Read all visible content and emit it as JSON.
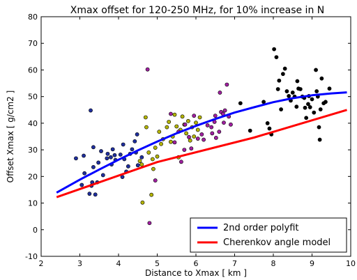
{
  "chart_data": {
    "type": "scatter",
    "title": "Xmax offset for 120-250 MHz, for 10% increase in N",
    "xlabel": "Distance to Xmax [ km ]",
    "ylabel": "Offset Xmax [ g/cm2 ]",
    "xlim": [
      2,
      10
    ],
    "ylim": [
      -10,
      80
    ],
    "xticks": [
      2,
      3,
      4,
      5,
      6,
      7,
      8,
      9,
      10
    ],
    "yticks": [
      -10,
      0,
      10,
      20,
      30,
      40,
      50,
      60,
      70,
      80
    ],
    "grid": false,
    "legend_position": "lower-right",
    "scatter_series": [
      {
        "color": "#1f2f9e",
        "points": [
          [
            2.9,
            26.8
          ],
          [
            3.05,
            16.8
          ],
          [
            3.1,
            27.8
          ],
          [
            3.12,
            21.2
          ],
          [
            3.25,
            13.5
          ],
          [
            3.28,
            44.8
          ],
          [
            3.3,
            16.5
          ],
          [
            3.32,
            17.8
          ],
          [
            3.35,
            23.5
          ],
          [
            3.35,
            31
          ],
          [
            3.4,
            13.2
          ],
          [
            3.45,
            17.8
          ],
          [
            3.48,
            25.2
          ],
          [
            3.55,
            29.5
          ],
          [
            3.6,
            20.5
          ],
          [
            3.7,
            26.8
          ],
          [
            3.72,
            28.5
          ],
          [
            3.8,
            27.2
          ],
          [
            3.82,
            24.5
          ],
          [
            3.85,
            30.2
          ],
          [
            3.9,
            28
          ],
          [
            3.92,
            26.2
          ],
          [
            4.05,
            28.2
          ],
          [
            4.1,
            19.8
          ],
          [
            4.12,
            32
          ],
          [
            4.15,
            26.5
          ],
          [
            4.2,
            21.8
          ],
          [
            4.25,
            23.8
          ],
          [
            4.3,
            28.5
          ],
          [
            4.35,
            30.2
          ],
          [
            4.42,
            33.2
          ],
          [
            4.45,
            29
          ],
          [
            4.48,
            35.8
          ],
          [
            4.5,
            24.2
          ],
          [
            4.6,
            27.2
          ]
        ]
      },
      {
        "color": "#b4b400",
        "points": [
          [
            4.55,
            25.8
          ],
          [
            4.6,
            24.5
          ],
          [
            4.62,
            10.2
          ],
          [
            4.7,
            42.2
          ],
          [
            4.72,
            38.5
          ],
          [
            4.78,
            29
          ],
          [
            4.85,
            13.1
          ],
          [
            4.88,
            26.5
          ],
          [
            4.9,
            22.8
          ],
          [
            4.95,
            30.8
          ],
          [
            5.0,
            27.5
          ],
          [
            5.05,
            36.8
          ],
          [
            5.1,
            32.2
          ],
          [
            5.15,
            34
          ],
          [
            5.25,
            38.5
          ],
          [
            5.3,
            40.5
          ],
          [
            5.35,
            33
          ],
          [
            5.4,
            35
          ],
          [
            5.45,
            43.2
          ],
          [
            5.5,
            38.8
          ],
          [
            5.55,
            27.2
          ],
          [
            5.6,
            37.5
          ],
          [
            5.65,
            42.5
          ],
          [
            5.7,
            39.5
          ],
          [
            5.75,
            36.2
          ],
          [
            5.8,
            40.8
          ],
          [
            5.85,
            33.5
          ],
          [
            5.9,
            38.5
          ],
          [
            5.95,
            35
          ],
          [
            6.0,
            40.2
          ],
          [
            6.05,
            37.5
          ],
          [
            6.1,
            42.2
          ]
        ]
      },
      {
        "color": "#a020a0",
        "points": [
          [
            4.75,
            60.2
          ],
          [
            4.8,
            2.5
          ],
          [
            4.95,
            18.5
          ],
          [
            5.35,
            43.5
          ],
          [
            5.45,
            32.8
          ],
          [
            5.55,
            36.8
          ],
          [
            5.62,
            25.5
          ],
          [
            5.7,
            30
          ],
          [
            5.72,
            39.5
          ],
          [
            5.82,
            34.8
          ],
          [
            5.88,
            30.5
          ],
          [
            5.95,
            42.8
          ],
          [
            6.05,
            34.2
          ],
          [
            6.15,
            35.8
          ],
          [
            6.2,
            33.8
          ],
          [
            6.3,
            39.2
          ],
          [
            6.4,
            38.5
          ],
          [
            6.42,
            36.2
          ],
          [
            6.48,
            40.5
          ],
          [
            6.5,
            42.8
          ],
          [
            6.52,
            34.5
          ],
          [
            6.6,
            36.8
          ],
          [
            6.62,
            51.5
          ],
          [
            6.65,
            44.2
          ],
          [
            6.7,
            43.5
          ],
          [
            6.72,
            40.2
          ],
          [
            6.75,
            44.8
          ],
          [
            6.8,
            54.5
          ],
          [
            6.85,
            42.5
          ],
          [
            6.9,
            39.5
          ]
        ]
      },
      {
        "color": "#000000",
        "points": [
          [
            7.15,
            47.5
          ],
          [
            7.4,
            37.2
          ],
          [
            7.75,
            48
          ],
          [
            7.85,
            40
          ],
          [
            7.9,
            38
          ],
          [
            7.95,
            35.8
          ],
          [
            8.02,
            67.8
          ],
          [
            8.08,
            64.8
          ],
          [
            8.12,
            52.8
          ],
          [
            8.15,
            56
          ],
          [
            8.2,
            45.2
          ],
          [
            8.25,
            58.5
          ],
          [
            8.3,
            60.5
          ],
          [
            8.35,
            52
          ],
          [
            8.4,
            50.2
          ],
          [
            8.45,
            48.5
          ],
          [
            8.5,
            51.5
          ],
          [
            8.55,
            50
          ],
          [
            8.6,
            46.2
          ],
          [
            8.62,
            55.8
          ],
          [
            8.65,
            53
          ],
          [
            8.7,
            52.8
          ],
          [
            8.75,
            50
          ],
          [
            8.8,
            49.5
          ],
          [
            8.82,
            45.8
          ],
          [
            8.85,
            42
          ],
          [
            8.9,
            47.2
          ],
          [
            8.92,
            50.2
          ],
          [
            8.95,
            46
          ],
          [
            9.0,
            49
          ],
          [
            9.05,
            44
          ],
          [
            9.1,
            60
          ],
          [
            9.12,
            52
          ],
          [
            9.15,
            50
          ],
          [
            9.18,
            38.5
          ],
          [
            9.2,
            33.8
          ],
          [
            9.22,
            45.2
          ],
          [
            9.25,
            56.8
          ],
          [
            9.3,
            47.5
          ],
          [
            9.35,
            48
          ],
          [
            9.45,
            53
          ]
        ]
      }
    ],
    "series": [
      {
        "name": "2nd order polyfit",
        "color": "#0000ff",
        "x": [
          2.4,
          3.0,
          3.5,
          4.0,
          4.5,
          5.0,
          5.5,
          6.0,
          6.5,
          7.0,
          7.5,
          8.0,
          8.5,
          9.0,
          9.5,
          9.9
        ],
        "y": [
          13.9,
          18.8,
          22.6,
          26.3,
          29.8,
          33.1,
          36.2,
          39.0,
          41.6,
          44.0,
          46.0,
          47.9,
          49.4,
          50.5,
          51.2,
          51.6
        ]
      },
      {
        "name": "Cherenkov angle model",
        "color": "#ff0000",
        "x": [
          2.4,
          5.0,
          7.5,
          9.9
        ],
        "y": [
          12.2,
          25.4,
          34.6,
          45.0
        ]
      }
    ]
  }
}
